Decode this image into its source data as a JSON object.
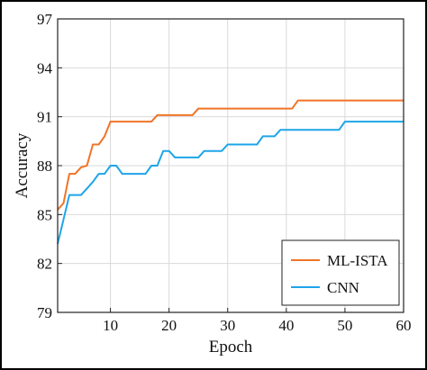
{
  "chart_data": {
    "type": "line",
    "title": "",
    "xlabel": "Epoch",
    "ylabel": "Accuracy",
    "xlim": [
      1,
      60
    ],
    "ylim": [
      79,
      97
    ],
    "xticks": [
      10,
      20,
      30,
      40,
      50,
      60
    ],
    "yticks": [
      79,
      82,
      85,
      88,
      91,
      94,
      97
    ],
    "grid": true,
    "legend_position": "bottom-right",
    "series": [
      {
        "name": "ML-ISTA",
        "color": "#F07427",
        "x": [
          1,
          2,
          3,
          4,
          5,
          6,
          7,
          8,
          9,
          10,
          11,
          12,
          13,
          14,
          15,
          16,
          17,
          18,
          19,
          20,
          21,
          22,
          23,
          24,
          25,
          26,
          27,
          28,
          29,
          30,
          31,
          32,
          33,
          34,
          35,
          36,
          37,
          38,
          39,
          40,
          41,
          42,
          43,
          44,
          45,
          46,
          47,
          48,
          49,
          50,
          51,
          52,
          53,
          54,
          55,
          56,
          57,
          58,
          59,
          60
        ],
        "y": [
          85.3,
          85.7,
          87.5,
          87.5,
          87.9,
          88.0,
          89.3,
          89.3,
          89.8,
          90.7,
          90.7,
          90.7,
          90.7,
          90.7,
          90.7,
          90.7,
          90.7,
          91.1,
          91.1,
          91.1,
          91.1,
          91.1,
          91.1,
          91.1,
          91.5,
          91.5,
          91.5,
          91.5,
          91.5,
          91.5,
          91.5,
          91.5,
          91.5,
          91.5,
          91.5,
          91.5,
          91.5,
          91.5,
          91.5,
          91.5,
          91.5,
          92.0,
          92.0,
          92.0,
          92.0,
          92.0,
          92.0,
          92.0,
          92.0,
          92.0,
          92.0,
          92.0,
          92.0,
          92.0,
          92.0,
          92.0,
          92.0,
          92.0,
          92.0,
          92.0
        ]
      },
      {
        "name": "CNN",
        "color": "#1EA5E8",
        "x": [
          1,
          2,
          3,
          4,
          5,
          6,
          7,
          8,
          9,
          10,
          11,
          12,
          13,
          14,
          15,
          16,
          17,
          18,
          19,
          20,
          21,
          22,
          23,
          24,
          25,
          26,
          27,
          28,
          29,
          30,
          31,
          32,
          33,
          34,
          35,
          36,
          37,
          38,
          39,
          40,
          41,
          42,
          43,
          44,
          45,
          46,
          47,
          48,
          49,
          50,
          51,
          52,
          53,
          54,
          55,
          56,
          57,
          58,
          59,
          60
        ],
        "y": [
          83.2,
          84.7,
          86.2,
          86.2,
          86.2,
          86.6,
          87.0,
          87.5,
          87.5,
          88.0,
          88.0,
          87.5,
          87.5,
          87.5,
          87.5,
          87.5,
          88.0,
          88.0,
          88.9,
          88.9,
          88.5,
          88.5,
          88.5,
          88.5,
          88.5,
          88.9,
          88.9,
          88.9,
          88.9,
          89.3,
          89.3,
          89.3,
          89.3,
          89.3,
          89.3,
          89.8,
          89.8,
          89.8,
          90.2,
          90.2,
          90.2,
          90.2,
          90.2,
          90.2,
          90.2,
          90.2,
          90.2,
          90.2,
          90.2,
          90.7,
          90.7,
          90.7,
          90.7,
          90.7,
          90.7,
          90.7,
          90.7,
          90.7,
          90.7,
          90.7
        ]
      }
    ]
  }
}
